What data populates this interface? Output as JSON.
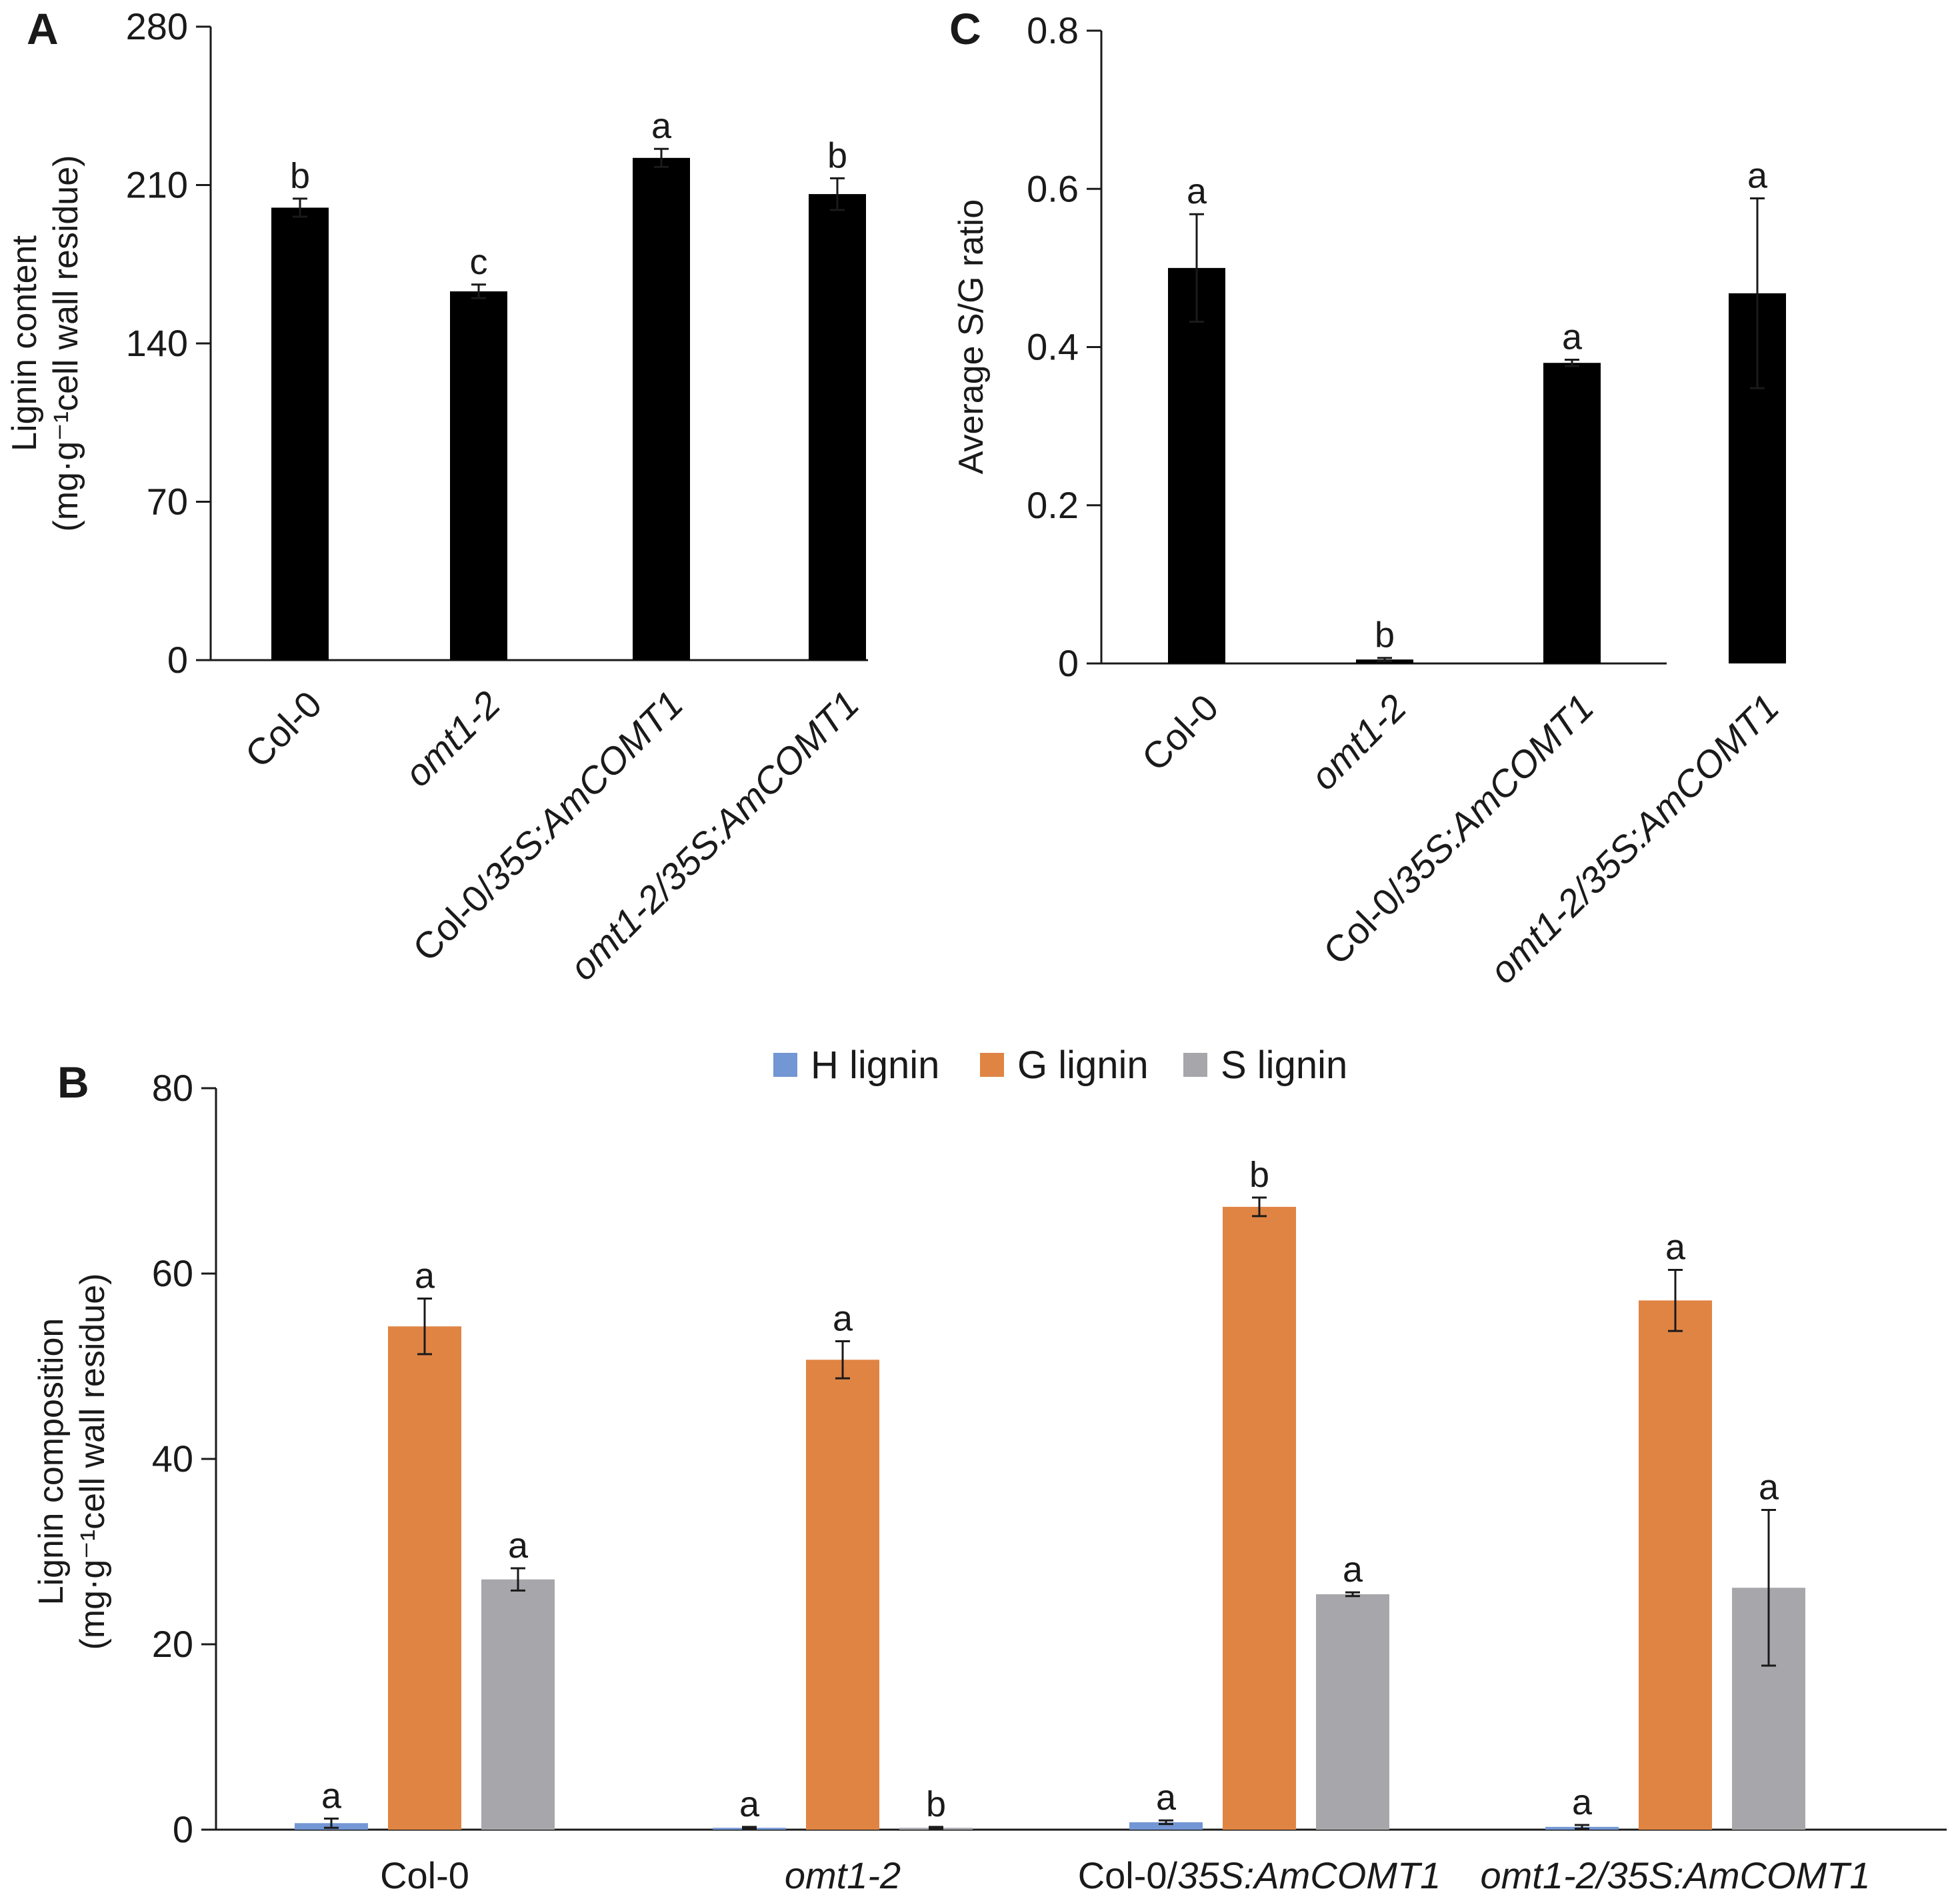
{
  "figure": {
    "panels": [
      "A",
      "B",
      "C"
    ]
  },
  "chart_data": [
    {
      "id": "A",
      "type": "bar",
      "panel_label": "A",
      "categories": [
        {
          "plain": "Col-0",
          "italic": ""
        },
        {
          "plain": "",
          "italic": "omt1-2"
        },
        {
          "plain": "Col-0/",
          "italic": "35S:AmCOMT1"
        },
        {
          "plain": "",
          "italic": "omt1-2/35S:AmCOMT1"
        }
      ],
      "series": [
        {
          "values": [
            200,
            163,
            222,
            206
          ],
          "errors": [
            4,
            3,
            4,
            7
          ],
          "color": "#000000",
          "letters": [
            "b",
            "c",
            "a",
            "b"
          ]
        }
      ],
      "ylabel_line1": "Lignin content",
      "ylabel_line2": "(mg·g⁻¹cell wall residue)",
      "ylim": [
        0,
        280
      ],
      "yticks": [
        "0",
        "70",
        "140",
        "210",
        "280"
      ],
      "tick_values": [
        0,
        70,
        140,
        210,
        280
      ],
      "legend": "none",
      "grid": false
    },
    {
      "id": "C",
      "type": "bar",
      "panel_label": "C",
      "categories": [
        {
          "plain": "Col-0",
          "italic": ""
        },
        {
          "plain": "",
          "italic": "omt1-2"
        },
        {
          "plain": "Col-0/",
          "italic": "35S:AmCOMT1"
        },
        {
          "plain": "",
          "italic": "omt1-2/35S:AmCOMT1"
        }
      ],
      "series": [
        {
          "values": [
            0.5,
            0.005,
            0.38,
            0.468
          ],
          "errors": [
            0.068,
            0.002,
            0.004,
            0.12
          ],
          "color": "#000000",
          "letters": [
            "a",
            "b",
            "a",
            "a"
          ]
        }
      ],
      "ylabel_line1": "Average S/G ratio",
      "ylabel_line2": "",
      "ylim": [
        0,
        0.8
      ],
      "yticks": [
        "0",
        "0.2",
        "0.4",
        "0.6",
        "0.8"
      ],
      "tick_values": [
        0,
        0.2,
        0.4,
        0.6,
        0.8
      ],
      "legend": "none",
      "grid": false
    },
    {
      "id": "B",
      "type": "bar",
      "panel_label": "B",
      "categories": [
        {
          "plain": "Col-0",
          "italic": ""
        },
        {
          "plain": "",
          "italic": "omt1-2"
        },
        {
          "plain": "Col-0/",
          "italic": "35S:AmCOMT1"
        },
        {
          "plain": "",
          "italic": "omt1-2/35S:AmCOMT1"
        }
      ],
      "series": [
        {
          "name": "H lignin",
          "values": [
            0.7,
            0.2,
            0.8,
            0.3
          ],
          "errors": [
            0.5,
            0.1,
            0.2,
            0.2
          ],
          "color": "#7396d4",
          "letters": [
            "a",
            "a",
            "a",
            "a"
          ]
        },
        {
          "name": "G lignin",
          "values": [
            54.3,
            50.7,
            67.2,
            57.1
          ],
          "errors": [
            3.0,
            2.0,
            1.0,
            3.3
          ],
          "color": "#e08444",
          "letters": [
            "a",
            "a",
            "b",
            "a"
          ]
        },
        {
          "name": "S lignin",
          "values": [
            27.0,
            0.2,
            25.4,
            26.1
          ],
          "errors": [
            1.2,
            0.1,
            0.2,
            8.4
          ],
          "color": "#a7a6ab",
          "letters": [
            "a",
            "b",
            "a",
            "a"
          ]
        }
      ],
      "ylabel_line1": "Lignin composition",
      "ylabel_line2": "(mg·g⁻¹cell wall residue)",
      "ylim": [
        0,
        80
      ],
      "yticks": [
        "0",
        "20",
        "40",
        "60",
        "80"
      ],
      "tick_values": [
        0,
        20,
        40,
        60,
        80
      ],
      "legend": "top-center",
      "grid": false
    }
  ]
}
